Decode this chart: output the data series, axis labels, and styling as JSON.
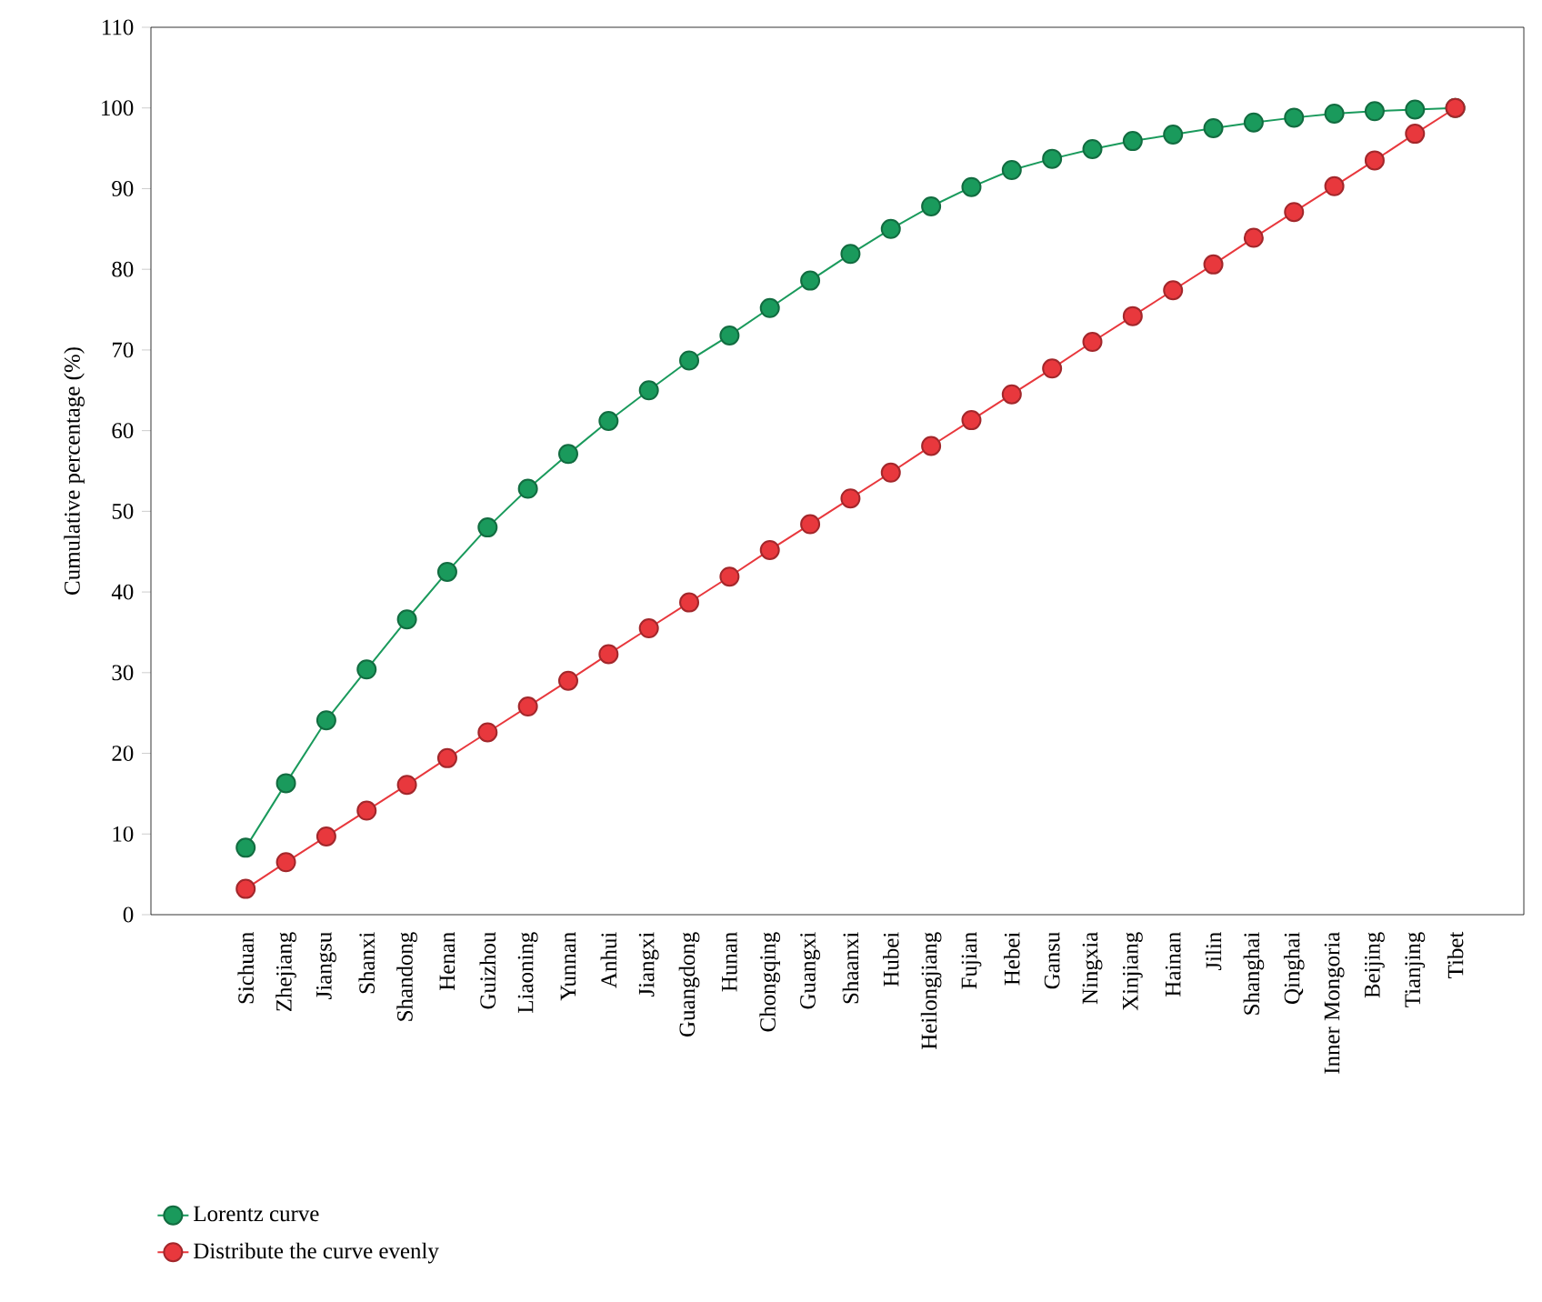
{
  "chart_data": {
    "type": "line",
    "ylabel": "Cumulative percentage (%)",
    "categories": [
      "Sichuan",
      "Zhejiang",
      "Jiangsu",
      "Shanxi",
      "Shandong",
      "Henan",
      "Guizhou",
      "Liaoning",
      "Yunnan",
      "Anhui",
      "Jiangxi",
      "Guangdong",
      "Hunan",
      "Chongqing",
      "Guangxi",
      "Shaanxi",
      "Hubei",
      "Heilongjiang",
      "Fujian",
      "Hebei",
      "Gansu",
      "Ningxia",
      "Xinjiang",
      "Hainan",
      "Jilin",
      "Shanghai",
      "Qinghai",
      "Inner Mongoria",
      "Beijing",
      "Tianjing",
      "Tibet"
    ],
    "series": [
      {
        "name": "Lorentz curve",
        "color": "#1a9a5c",
        "values": [
          8.3,
          16.3,
          24.1,
          30.4,
          36.6,
          42.5,
          48.0,
          52.8,
          57.1,
          61.2,
          65.0,
          68.7,
          71.8,
          75.2,
          78.6,
          81.9,
          85.0,
          87.8,
          90.2,
          92.3,
          93.7,
          94.9,
          95.9,
          96.7,
          97.5,
          98.2,
          98.8,
          99.3,
          99.6,
          99.8,
          100
        ]
      },
      {
        "name": "Distribute the curve evenly",
        "color": "#e8383d",
        "values": [
          3.2,
          6.5,
          9.7,
          12.9,
          16.1,
          19.4,
          22.6,
          25.8,
          29.0,
          32.3,
          35.5,
          38.7,
          41.9,
          45.2,
          48.4,
          51.6,
          54.8,
          58.1,
          61.3,
          64.5,
          67.7,
          71.0,
          74.2,
          77.4,
          80.6,
          83.9,
          87.1,
          90.3,
          93.5,
          96.8,
          100
        ]
      }
    ],
    "ylim": [
      0,
      110
    ],
    "yticks": [
      0,
      10,
      20,
      30,
      40,
      50,
      60,
      70,
      80,
      90,
      100,
      110
    ],
    "grid": false,
    "legend": "bottom left",
    "marker": "circle",
    "line_style": "solid"
  }
}
